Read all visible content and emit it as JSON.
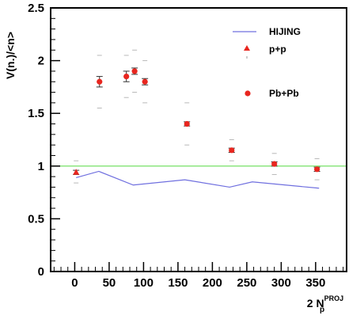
{
  "chart_data": {
    "type": "scatter",
    "ylabel": "V(n.)/<n>",
    "xlabel": "2 N",
    "xlabel_sub": "p",
    "xlabel_sup": "PROJ",
    "xlim": [
      -35,
      395
    ],
    "ylim": [
      0,
      2.5
    ],
    "xticks": [
      0,
      50,
      100,
      150,
      200,
      250,
      300,
      350
    ],
    "yticks": [
      0,
      0.5,
      1,
      1.5,
      2,
      2.5
    ],
    "ytick_labels": [
      "0",
      "0.5",
      "1",
      "1.5",
      "2",
      "2.5"
    ],
    "reference_line": {
      "y": 1,
      "color": "#66dd55"
    },
    "series": [
      {
        "name": "HIJING",
        "style": "line",
        "color": "#6f6fdf",
        "points": [
          {
            "x": 2,
            "y": 0.89
          },
          {
            "x": 35,
            "y": 0.95
          },
          {
            "x": 85,
            "y": 0.82
          },
          {
            "x": 160,
            "y": 0.87
          },
          {
            "x": 225,
            "y": 0.8
          },
          {
            "x": 258,
            "y": 0.85
          },
          {
            "x": 355,
            "y": 0.79
          }
        ]
      },
      {
        "name": "p+p",
        "style": "triangle",
        "color": "#e8261f",
        "points": [
          {
            "x": 2,
            "y": 0.94,
            "err": 0.02,
            "sys_lo": 0.84,
            "sys_hi": 1.05
          }
        ]
      },
      {
        "name": "Pb+Pb",
        "style": "circle",
        "color": "#e8261f",
        "points": [
          {
            "x": 36,
            "y": 1.8,
            "err": 0.05,
            "sys_lo": 1.55,
            "sys_hi": 2.05
          },
          {
            "x": 75,
            "y": 1.85,
            "err": 0.05,
            "sys_lo": 1.65,
            "sys_hi": 2.05
          },
          {
            "x": 87,
            "y": 1.9,
            "err": 0.03,
            "sys_lo": 1.7,
            "sys_hi": 2.1
          },
          {
            "x": 102,
            "y": 1.8,
            "err": 0.03,
            "sys_lo": 1.6,
            "sys_hi": 2.0
          },
          {
            "x": 163,
            "y": 1.4,
            "err": 0.02,
            "sys_lo": 1.2,
            "sys_hi": 1.6
          },
          {
            "x": 228,
            "y": 1.15,
            "err": 0.02,
            "sys_lo": 1.05,
            "sys_hi": 1.25
          },
          {
            "x": 290,
            "y": 1.02,
            "err": 0.02,
            "sys_lo": 0.92,
            "sys_hi": 1.12
          },
          {
            "x": 352,
            "y": 0.97,
            "err": 0.02,
            "sys_lo": 0.87,
            "sys_hi": 1.07
          }
        ]
      }
    ],
    "legend": {
      "placement": "top-right",
      "entries": [
        {
          "label": "HIJING",
          "marker": "line"
        },
        {
          "label": "p+p",
          "marker": "triangle"
        },
        {
          "label": "Pb+Pb",
          "marker": "circle"
        }
      ]
    }
  }
}
